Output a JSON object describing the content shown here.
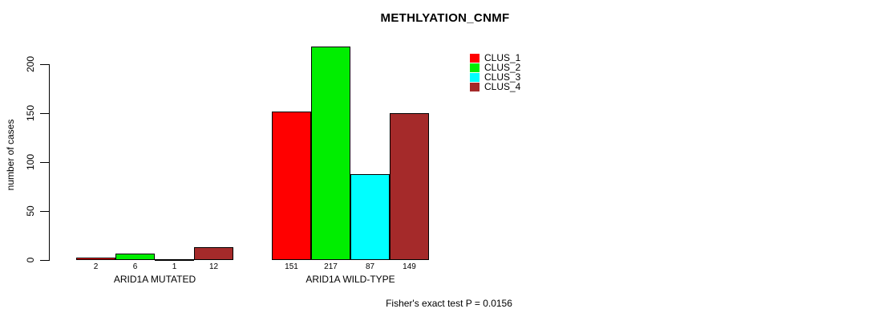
{
  "chart_data": {
    "type": "bar",
    "title": "METHLYATION_CNMF",
    "ylabel": "number of cases",
    "xlabel": "",
    "categories": [
      "ARID1A MUTATED",
      "ARID1A WILD-TYPE"
    ],
    "series": [
      {
        "name": "CLUS_1",
        "color": "#ff0000",
        "values": [
          2,
          151
        ]
      },
      {
        "name": "CLUS_2",
        "color": "#00ee00",
        "values": [
          6,
          217
        ]
      },
      {
        "name": "CLUS_3",
        "color": "#00ffff",
        "values": [
          1,
          87
        ]
      },
      {
        "name": "CLUS_4",
        "color": "#a52a2a",
        "values": [
          12,
          149
        ]
      }
    ],
    "yticks": [
      0,
      50,
      100,
      150,
      200
    ],
    "ylim": [
      0,
      220
    ],
    "bar_value_labels": [
      [
        "2",
        "6",
        "1",
        "12"
      ],
      [
        "151",
        "217",
        "87",
        "149"
      ]
    ],
    "legend_entries": [
      "CLUS_1",
      "CLUS_2",
      "CLUS_3",
      "CLUS_4"
    ],
    "legend_position": "inner-top-center-right",
    "grid": false,
    "annotation": "Fisher's exact test P = 0.0156",
    "axis_color": "#000000",
    "background_color": "#ffffff"
  }
}
